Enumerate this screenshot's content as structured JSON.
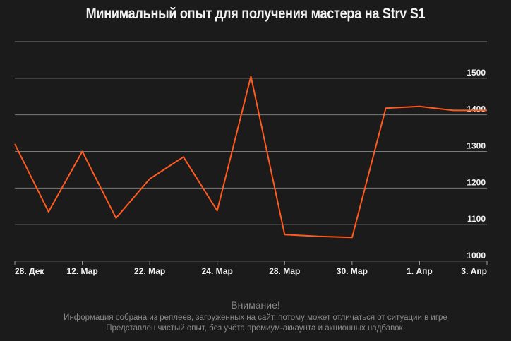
{
  "chart_data": {
    "type": "line",
    "title": "Минимальный опыт для получения мастера на Strv S1",
    "x_ticks": [
      "28. Дек",
      "12. Мар",
      "22. Мар",
      "24. Мар",
      "28. Мар",
      "30. Мар",
      "1. Апр",
      "3. Апр"
    ],
    "y_ticks": [
      1000,
      1100,
      1200,
      1300,
      1400,
      1500
    ],
    "ylim": [
      1000,
      1600
    ],
    "grid": true,
    "series": [
      {
        "color": "#ff5a1f",
        "values": [
          1320,
          1135,
          1300,
          1118,
          1225,
          1285,
          1138,
          1505,
          1073,
          1068,
          1065,
          1418,
          1423,
          1412,
          1412
        ]
      }
    ]
  },
  "footer": {
    "warning_title": "Внимание!",
    "note_line1": "Информация собрана из реплеев, загруженных на сайт, потому может отличаться от ситуации в игре",
    "note_line2": "Представлен чистый опыт, без учёта премиум-аккаунта и акционных надбавок."
  }
}
